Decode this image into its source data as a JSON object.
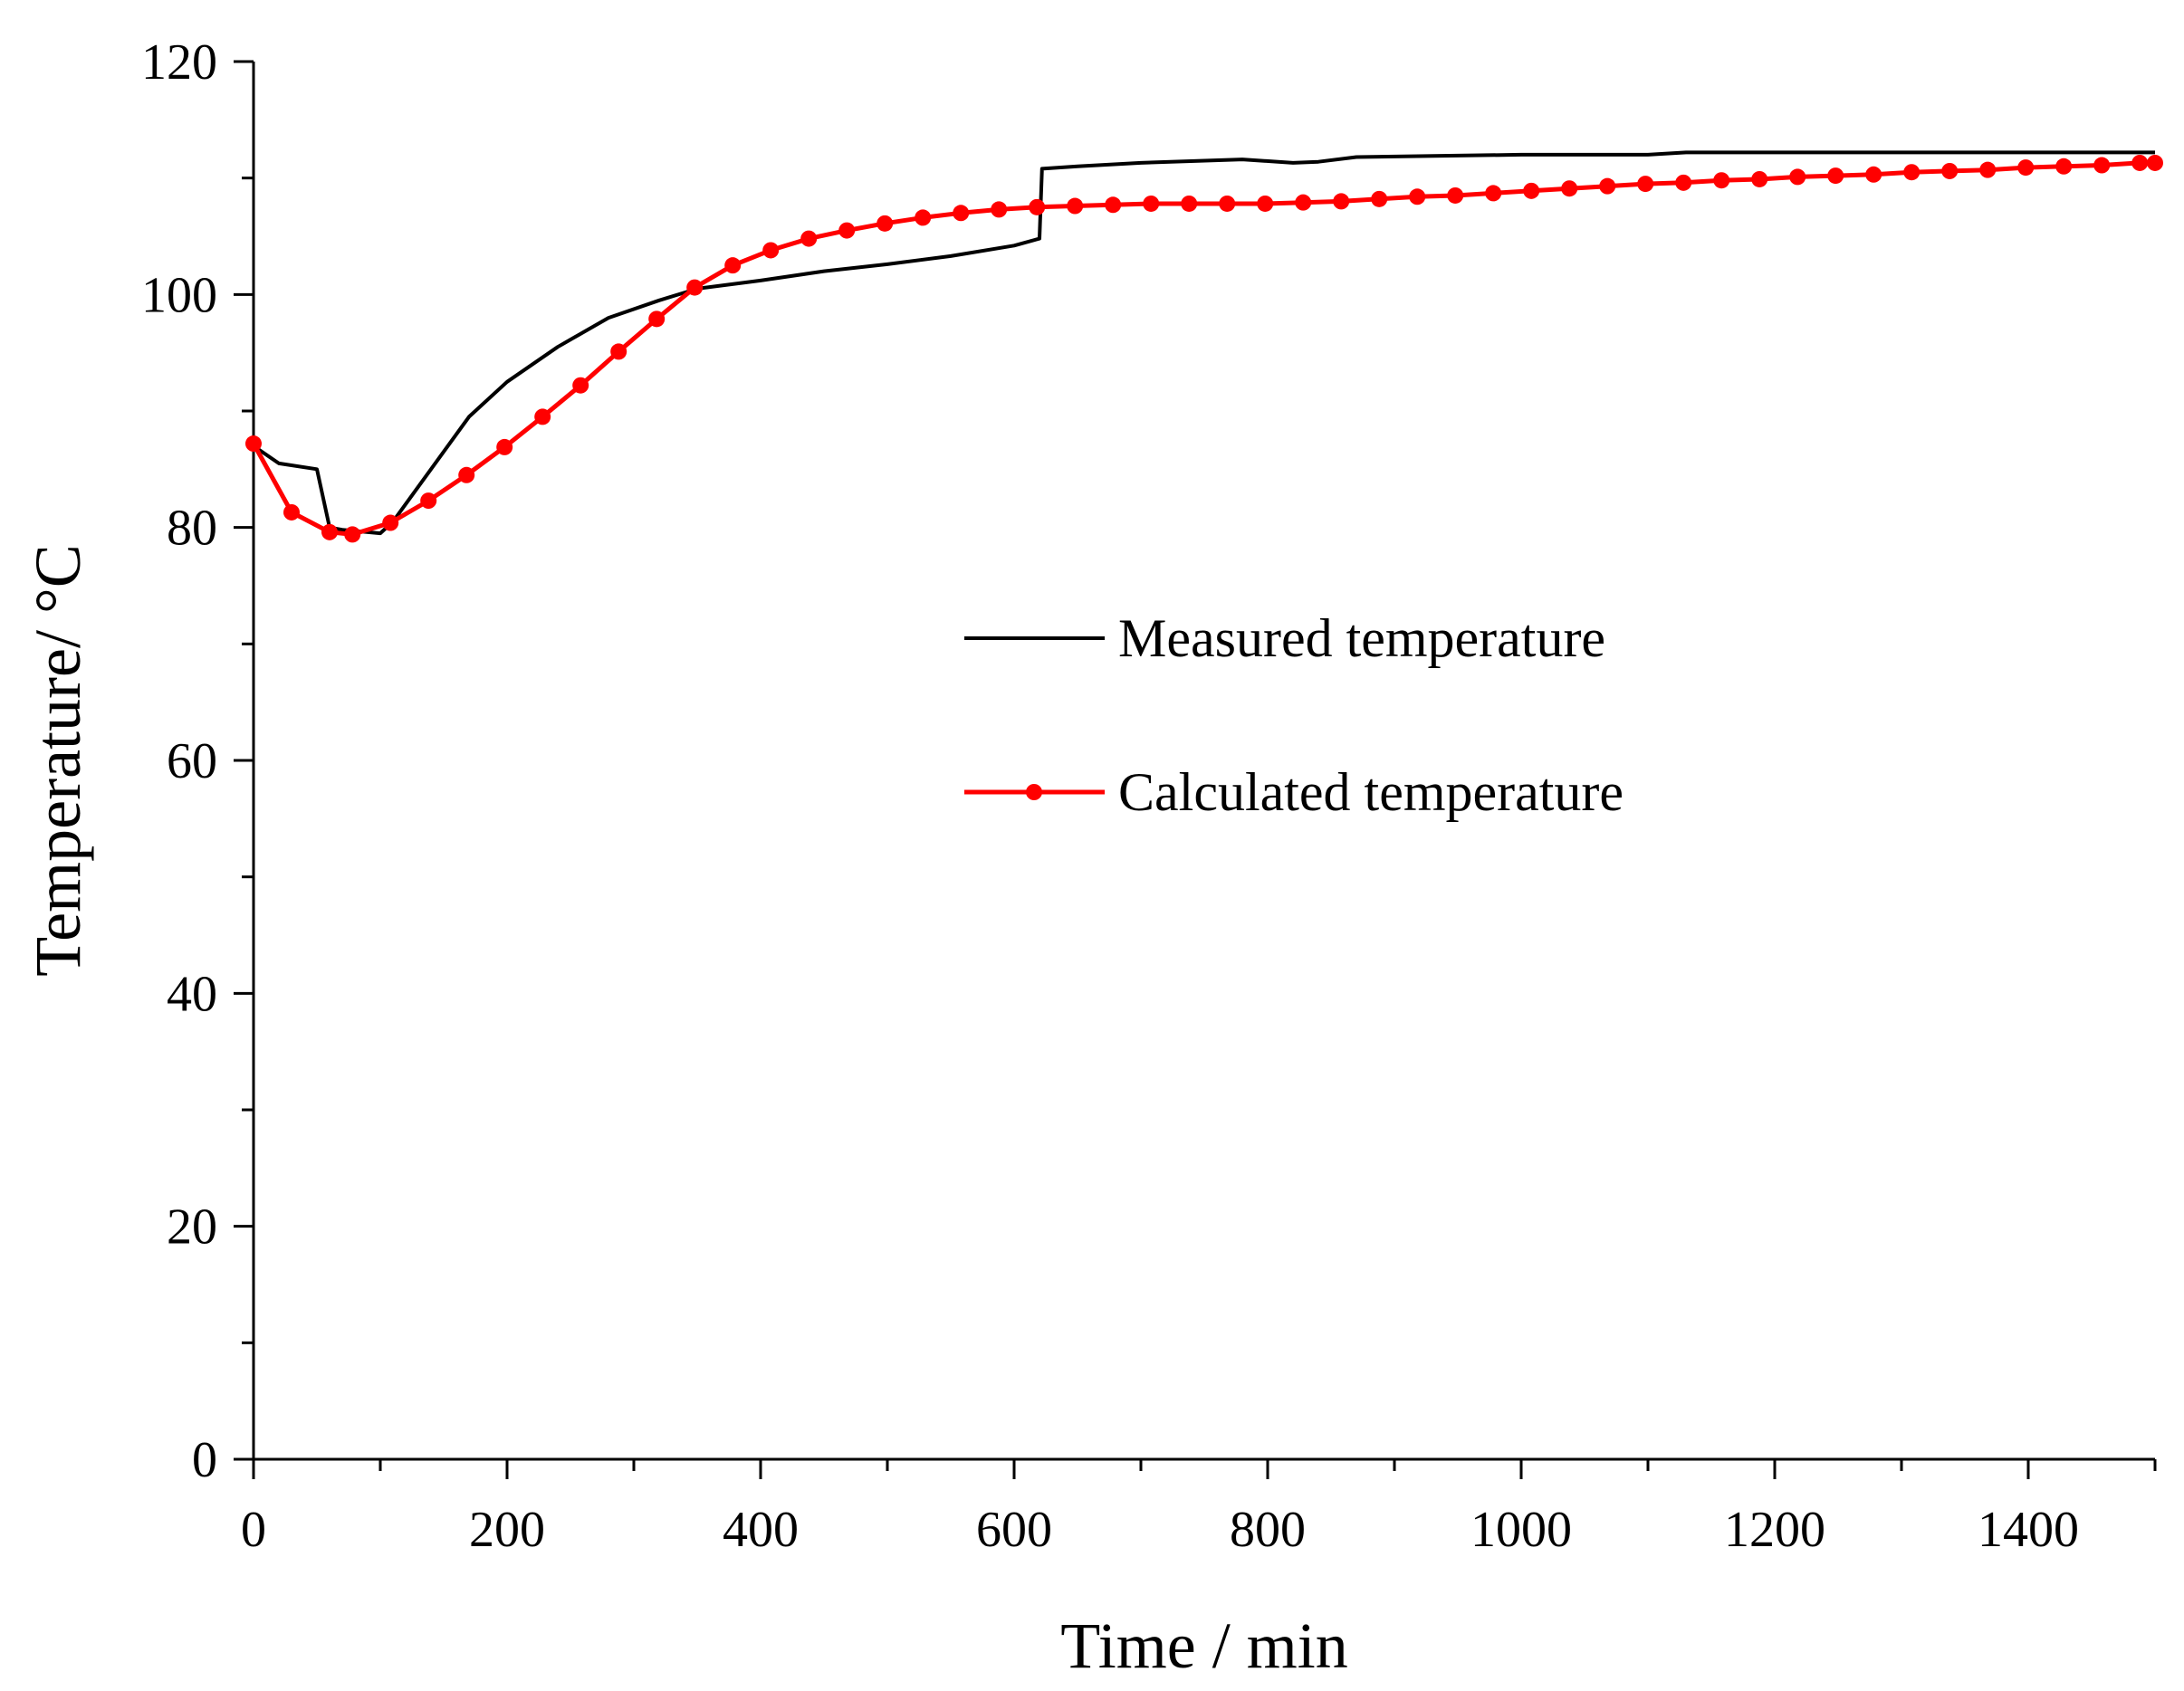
{
  "chart_data": {
    "type": "line",
    "title": "",
    "xlabel": "Time / min",
    "ylabel": "Temperature/ °C",
    "xlim": [
      0,
      1500
    ],
    "ylim": [
      0,
      120
    ],
    "xticks": [
      0,
      200,
      400,
      600,
      800,
      1000,
      1200,
      1400
    ],
    "yticks": [
      0,
      20,
      40,
      60,
      80,
      100,
      120
    ],
    "grid": false,
    "legend_position": "center-right",
    "series": [
      {
        "name": "Measured temperature",
        "color": "#000000",
        "marker": "none",
        "x": [
          0,
          20,
          50,
          60,
          70,
          100,
          110,
          140,
          170,
          200,
          240,
          280,
          320,
          350,
          400,
          450,
          500,
          550,
          600,
          620,
          622,
          650,
          700,
          780,
          820,
          840,
          870,
          1000,
          1100,
          1130,
          1500
        ],
        "y": [
          87,
          85.5,
          85,
          80,
          79.8,
          79.5,
          80.5,
          85,
          89.5,
          92.5,
          95.5,
          98,
          99.5,
          100.5,
          101.2,
          102,
          102.6,
          103.3,
          104.2,
          104.8,
          110.8,
          111,
          111.3,
          111.6,
          111.3,
          111.4,
          111.8,
          112,
          112,
          112.2,
          112.2
        ]
      },
      {
        "name": "Calculated temperature",
        "color": "#ff0000",
        "marker": "circle",
        "x": [
          0,
          30,
          60,
          78,
          108,
          138,
          168,
          198,
          228,
          258,
          288,
          318,
          348,
          378,
          408,
          438,
          468,
          498,
          528,
          558,
          588,
          618,
          648,
          678,
          708,
          738,
          768,
          798,
          828,
          858,
          888,
          918,
          948,
          978,
          1008,
          1038,
          1068,
          1098,
          1128,
          1158,
          1188,
          1218,
          1248,
          1278,
          1308,
          1338,
          1368,
          1398,
          1428,
          1458,
          1488,
          1500
        ],
        "y": [
          87.2,
          81.3,
          79.6,
          79.4,
          80.4,
          82.3,
          84.5,
          86.9,
          89.5,
          92.2,
          95.1,
          97.9,
          100.6,
          102.5,
          103.8,
          104.8,
          105.5,
          106.1,
          106.6,
          107,
          107.3,
          107.5,
          107.6,
          107.7,
          107.8,
          107.8,
          107.8,
          107.8,
          107.9,
          108,
          108.2,
          108.4,
          108.5,
          108.7,
          108.9,
          109.1,
          109.3,
          109.5,
          109.6,
          109.8,
          109.9,
          110.1,
          110.2,
          110.3,
          110.5,
          110.6,
          110.7,
          110.9,
          111,
          111.1,
          111.3,
          111.3
        ]
      }
    ]
  }
}
